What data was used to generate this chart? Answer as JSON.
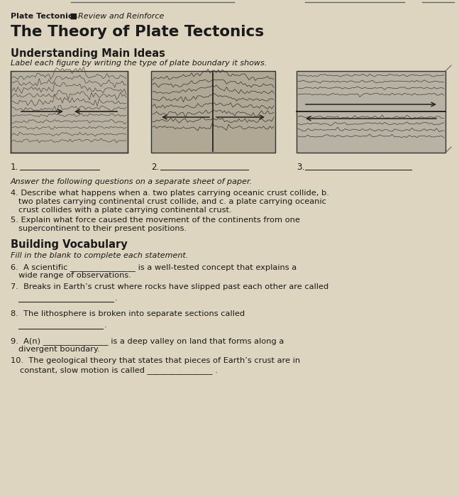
{
  "bg_color": "#ddd5c0",
  "text_color": "#1a1a1a",
  "line_color": "#2a2a2a",
  "figw": 6.47,
  "figh": 7.0,
  "dpi": 100,
  "header_bold": "Plate Tectonics",
  "header_sep": " ■  ",
  "header_italic": "Review and Reinforce",
  "title": "The Theory of Plate Tectonics",
  "s1_head": "Understanding Main Ideas",
  "s1_instr": "Label each figure by writing the type of plate boundary it shows.",
  "ans_instr": "Answer the following questions on a separate sheet of paper.",
  "q4_line1": "4. Describe what happens when a. two plates carrying oceanic crust collide, b.",
  "q4_line2": "   two plates carrying continental crust collide, and c. a plate carrying oceanic",
  "q4_line3": "   crust collides with a plate carrying continental crust.",
  "q5_line1": "5. Explain what force caused the movement of the continents from one",
  "q5_line2": "   supercontinent to their present positions.",
  "s2_head": "Building Vocabulary",
  "s2_instr": "Fill in the blank to complete each statement.",
  "q6_line1": "6.  A scientific ________________ is a well-tested concept that explains a",
  "q6_line2": "    wide range of observations.",
  "q7_line1": "7.  Breaks in Earth’s crust where rocks have slipped past each other are called",
  "q7_blank": "    _________________ .",
  "q8_line1": "8.  The lithosphere is broken into separate sections called",
  "q8_blank": "    _____________ .",
  "q9_line1": "9.  A(n) ________________ is a deep valley on land that forms along a",
  "q9_line2": "    divergent boundary.",
  "q10_line1": "10.  The geological theory that states that pieces of Earth’s crust are in",
  "q10_line2": "     constant, slow motion is called ________________ ."
}
